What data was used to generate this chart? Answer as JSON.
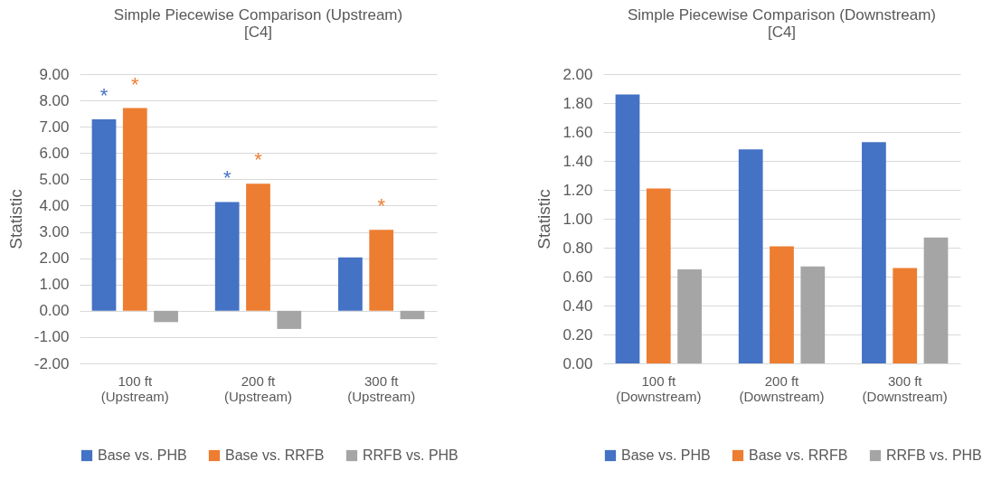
{
  "chart_data": [
    {
      "type": "bar",
      "title": "Simple Piecewise Comparison (Upstream)\n[C4]",
      "ylabel": "Statistic",
      "categories": [
        "100 ft\n(Upstream)",
        "200 ft\n(Upstream)",
        "300 ft\n(Upstream)"
      ],
      "series": [
        {
          "name": "Base vs. PHB",
          "color": "#4472c4",
          "values": [
            7.28,
            4.14,
            2.03
          ],
          "value_labels": [
            "*",
            "*",
            null
          ]
        },
        {
          "name": "Base vs. RRFB",
          "color": "#ed7d31",
          "values": [
            7.71,
            4.83,
            3.08
          ],
          "value_labels": [
            "*",
            "*",
            "*"
          ]
        },
        {
          "name": "RRFB vs. PHB",
          "color": "#a5a5a5",
          "values": [
            -0.43,
            -0.69,
            -0.32
          ]
        }
      ],
      "ylim": [
        -2,
        9
      ],
      "yticks": [
        {
          "value": -2,
          "label": "-2.00"
        },
        {
          "value": -1,
          "label": "-1.00"
        },
        {
          "value": 0,
          "label": "0.00"
        },
        {
          "value": 1,
          "label": "1.00"
        },
        {
          "value": 2,
          "label": "2.00"
        },
        {
          "value": 3,
          "label": "3.00"
        },
        {
          "value": 4,
          "label": "4.00"
        },
        {
          "value": 5,
          "label": "5.00"
        },
        {
          "value": 6,
          "label": "6.00"
        },
        {
          "value": 7,
          "label": "7.00"
        },
        {
          "value": 8,
          "label": "8.00"
        },
        {
          "value": 9,
          "label": "9.00"
        }
      ],
      "grid": "y",
      "legend": "bottom"
    },
    {
      "type": "bar",
      "title": "Simple Piecewise Comparison (Downstream)\n[C4]",
      "ylabel": "Statistic",
      "categories": [
        "100 ft\n(Downstream)",
        "200 ft\n(Downstream)",
        "300 ft\n(Downstream)"
      ],
      "series": [
        {
          "name": "Base vs. PHB",
          "color": "#4472c4",
          "values": [
            1.86,
            1.48,
            1.53
          ]
        },
        {
          "name": "Base vs. RRFB",
          "color": "#ed7d31",
          "values": [
            1.21,
            0.81,
            0.66
          ]
        },
        {
          "name": "RRFB vs. PHB",
          "color": "#a5a5a5",
          "values": [
            0.65,
            0.67,
            0.87
          ]
        }
      ],
      "ylim": [
        0,
        2
      ],
      "yticks": [
        {
          "value": 0,
          "label": "0.00"
        },
        {
          "value": 0.2,
          "label": "0.20"
        },
        {
          "value": 0.4,
          "label": "0.40"
        },
        {
          "value": 0.6,
          "label": "0.60"
        },
        {
          "value": 0.8,
          "label": "0.80"
        },
        {
          "value": 1,
          "label": "1.00"
        },
        {
          "value": 1.2,
          "label": "1.20"
        },
        {
          "value": 1.4,
          "label": "1.40"
        },
        {
          "value": 1.6,
          "label": "1.60"
        },
        {
          "value": 1.8,
          "label": "1.80"
        },
        {
          "value": 2,
          "label": "2.00"
        }
      ],
      "grid": "y",
      "legend": "bottom"
    }
  ]
}
